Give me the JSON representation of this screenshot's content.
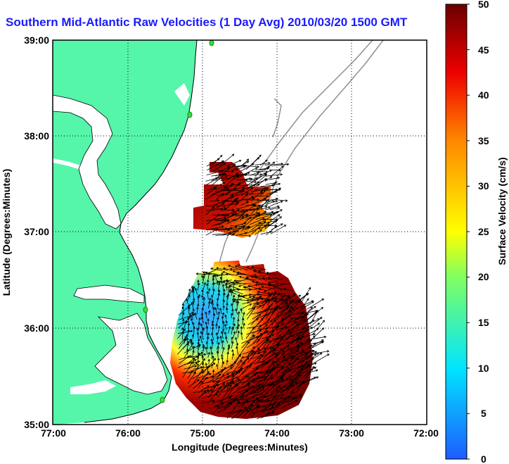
{
  "title": "Southern Mid-Atlantic Raw Velocities (1 Day Avg) 2010/03/20 1500 GMT",
  "xlabel": "Longitude (Degrees:Minutes)",
  "ylabel": "Latitude (Degrees:Minutes)",
  "colorbar_label": "Surface Velocity (cm/s)",
  "x_ticks": [
    "77:00",
    "76:00",
    "75:00",
    "74:00",
    "73:00",
    "72:00"
  ],
  "y_ticks": [
    "39:00",
    "38:00",
    "37:00",
    "36:00",
    "35:00"
  ],
  "colorbar_ticks": [
    "50",
    "45",
    "40",
    "35",
    "30",
    "25",
    "20",
    "15",
    "10",
    "5",
    "0"
  ],
  "colors": {
    "land": "#55f5aa",
    "title": "#1a1aff",
    "vectors": "#000000",
    "bathymetry": "#909090",
    "stations": "#33dd33"
  }
}
